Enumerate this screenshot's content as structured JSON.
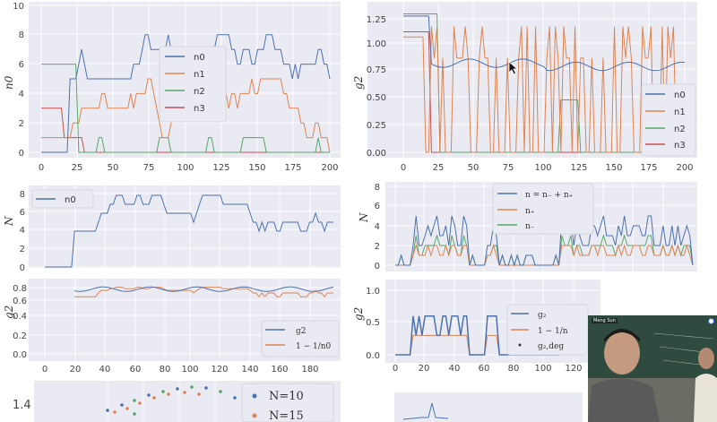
{
  "palette": {
    "n0": "#4c72b0",
    "n1": "#dd8452",
    "n2": "#55a868",
    "n3": "#c44e52",
    "g2": "#4c72b0",
    "inv": "#dd8452",
    "axes_bg": "#eaeaf2"
  },
  "panel1": {
    "ylabel": "n0",
    "xticks": [
      "0",
      "25",
      "50",
      "75",
      "100",
      "125",
      "150",
      "175",
      "200"
    ],
    "yticks": [
      "0",
      "2",
      "4",
      "6",
      "8",
      "10"
    ],
    "legend": [
      "n0",
      "n1",
      "n2",
      "n3"
    ]
  },
  "panel2": {
    "ylabel": "g2",
    "xticks": [
      "0",
      "25",
      "50",
      "75",
      "100",
      "125",
      "150",
      "175",
      "200"
    ],
    "yticks": [
      "0.00",
      "0.25",
      "0.50",
      "0.75",
      "1.00",
      "1.25"
    ],
    "legend": [
      "n0",
      "n1",
      "n2",
      "n3"
    ]
  },
  "panel3": {
    "ylabel_top": "N",
    "ylabel_bottom": "g2",
    "yticks_top": [
      "0",
      "2",
      "4",
      "6",
      "8"
    ],
    "yticks_bottom": [
      "0.0",
      "0.2",
      "0.4",
      "0.6",
      "0.8"
    ],
    "xticks": [
      "0",
      "20",
      "40",
      "60",
      "80",
      "100",
      "120",
      "140",
      "160",
      "180"
    ],
    "legend_top": [
      "n0"
    ],
    "legend_bottom": [
      "g2",
      "1 − 1/n0"
    ]
  },
  "panel4": {
    "ylabel_top": "N",
    "ylabel_bottom": "g2",
    "yticks_top": [
      "0",
      "2",
      "4",
      "6",
      "8"
    ],
    "yticks_bottom": [
      "0.0",
      "0.5",
      "1.0"
    ],
    "xticks": [
      "0",
      "20",
      "40",
      "60",
      "80",
      "100",
      "120"
    ],
    "legend_top": [
      "n = n₋ + n₊",
      "n₊",
      "n₋"
    ],
    "legend_bottom": [
      "g₂",
      "1 − 1/n",
      "g₂,deg"
    ]
  },
  "panel5": {
    "ytick": "1.4",
    "legend": [
      "N=10",
      "N=15"
    ]
  },
  "video": {
    "name_tag": "Meng Sun"
  },
  "chart_data": [
    {
      "type": "line",
      "title": "",
      "ylabel": "n0",
      "xlim": [
        0,
        200
      ],
      "ylim": [
        0,
        10
      ],
      "series": [
        {
          "name": "n0"
        },
        {
          "name": "n1"
        },
        {
          "name": "n2"
        },
        {
          "name": "n3"
        }
      ]
    },
    {
      "type": "line",
      "title": "",
      "ylabel": "g2",
      "xlim": [
        0,
        200
      ],
      "ylim": [
        0,
        1.3
      ],
      "series": [
        {
          "name": "n0"
        },
        {
          "name": "n1"
        },
        {
          "name": "n2"
        },
        {
          "name": "n3"
        }
      ]
    },
    {
      "type": "line",
      "title": "",
      "ylabel": "N / g2",
      "xlim": [
        0,
        195
      ],
      "series": [
        {
          "name": "n0"
        },
        {
          "name": "g2"
        },
        {
          "name": "1 − 1/n0"
        }
      ]
    },
    {
      "type": "line",
      "title": "",
      "ylabel": "N / g2",
      "xlim": [
        0,
        200
      ],
      "series": [
        {
          "name": "n = n₋ + n₊"
        },
        {
          "name": "n₊"
        },
        {
          "name": "n₋"
        },
        {
          "name": "g₂"
        },
        {
          "name": "1 − 1/n"
        },
        {
          "name": "g₂,deg"
        }
      ]
    },
    {
      "type": "scatter",
      "title": "",
      "series": [
        {
          "name": "N=10"
        },
        {
          "name": "N=15"
        }
      ]
    }
  ]
}
